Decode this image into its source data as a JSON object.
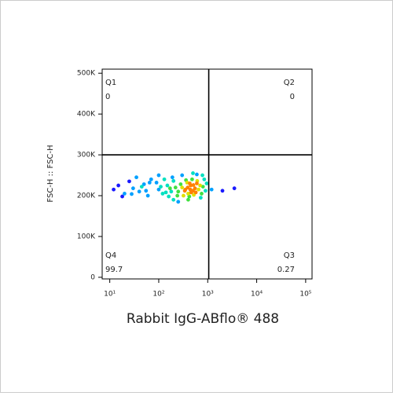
{
  "chart_data": {
    "type": "scatter",
    "x_label": "Rabbit IgG-ABflo® 488",
    "y_label": "FSC-H :: FSC-H",
    "x_scale": "log",
    "xlim": [
      7,
      135000
    ],
    "ylim": [
      -4000,
      510000
    ],
    "xticks": [
      {
        "value": 10,
        "label": "10¹"
      },
      {
        "value": 100,
        "label": "10²"
      },
      {
        "value": 1000,
        "label": "10³"
      },
      {
        "value": 10000,
        "label": "10⁴"
      },
      {
        "value": 100000,
        "label": "10⁵"
      }
    ],
    "yticks": [
      0,
      {
        "value": 100000,
        "label": "100K"
      },
      {
        "value": 200000,
        "label": "200K"
      },
      {
        "value": 300000,
        "label": "300K"
      },
      {
        "value": 400000,
        "label": "400K"
      },
      {
        "value": 500000,
        "label": "500K"
      }
    ],
    "gates": {
      "x": 1050,
      "y": 300000
    },
    "quadrants": [
      {
        "name": "Q1",
        "value": 0,
        "corner": "top-left"
      },
      {
        "name": "Q2",
        "value": 0,
        "corner": "top-right"
      },
      {
        "name": "Q3",
        "value": 0.27,
        "corner": "bottom-right"
      },
      {
        "name": "Q4",
        "value": 99.7,
        "corner": "bottom-left"
      }
    ],
    "points": {
      "x": [
        250,
        300,
        350,
        400,
        450,
        500,
        550,
        600,
        380,
        420,
        320,
        480,
        520,
        650,
        700,
        280,
        360,
        440,
        390,
        460,
        340,
        510,
        570,
        610,
        430,
        100,
        120,
        150,
        180,
        90,
        130,
        160,
        200,
        110,
        170,
        140,
        190,
        220,
        240,
        12,
        15,
        20,
        25,
        30,
        40,
        50,
        60,
        70,
        35,
        18,
        45,
        55,
        65,
        28,
        750,
        800,
        850,
        900,
        950,
        780,
        720,
        300,
        500,
        200,
        400,
        600,
        100,
        250,
        1200,
        2000,
        3500
      ],
      "y": [
        210000,
        220000,
        215000,
        205000,
        225000,
        212000,
        218000,
        230000,
        232000,
        198000,
        200000,
        240000,
        202000,
        215000,
        225000,
        228000,
        238000,
        215000,
        220000,
        208000,
        212000,
        226000,
        208000,
        236000,
        230000,
        215000,
        205000,
        225000,
        210000,
        232000,
        240000,
        198000,
        236000,
        222000,
        218000,
        208000,
        245000,
        220000,
        200000,
        215000,
        225000,
        205000,
        235000,
        218000,
        210000,
        228000,
        200000,
        240000,
        245000,
        198000,
        222000,
        212000,
        232000,
        204000,
        205000,
        222000,
        240000,
        212000,
        230000,
        250000,
        195000,
        250000,
        255000,
        190000,
        190000,
        252000,
        250000,
        185000,
        215000,
        212000,
        218000
      ]
    }
  }
}
